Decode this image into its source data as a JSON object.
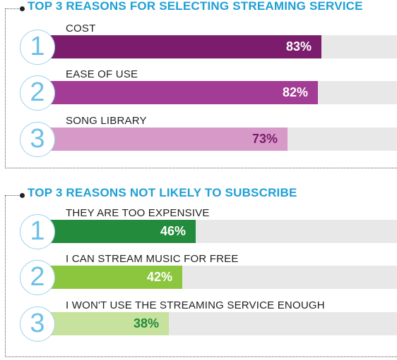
{
  "chart_data": [
    {
      "type": "bar",
      "orientation": "horizontal",
      "title": "TOP 3 REASONS FOR SELECTING STREAMING SERVICE",
      "categories": [
        "COST",
        "EASE OF USE",
        "SONG LIBRARY"
      ],
      "ranks": [
        "1",
        "2",
        "3"
      ],
      "values": [
        83,
        82,
        73
      ],
      "value_labels": [
        "83%",
        "82%",
        "73%"
      ],
      "xlim": [
        0,
        100
      ],
      "colors": [
        "#7b1c6c",
        "#a23c95",
        "#d799c8"
      ],
      "value_label_colors": [
        "#ffffff",
        "#ffffff",
        "#7b1c6c"
      ],
      "grid": false
    },
    {
      "type": "bar",
      "orientation": "horizontal",
      "title": "TOP 3 REASONS NOT LIKELY TO SUBSCRIBE",
      "categories": [
        "THEY ARE TOO EXPENSIVE",
        "I CAN STREAM MUSIC FOR FREE",
        "I WON'T USE THE STREAMING SERVICE ENOUGH"
      ],
      "ranks": [
        "1",
        "2",
        "3"
      ],
      "values": [
        46,
        42,
        38
      ],
      "value_labels": [
        "46%",
        "42%",
        "38%"
      ],
      "xlim": [
        0,
        100
      ],
      "colors": [
        "#228b3c",
        "#8cc63e",
        "#c6e29c"
      ],
      "value_label_colors": [
        "#ffffff",
        "#ffffff",
        "#228b3c"
      ],
      "grid": false
    }
  ]
}
